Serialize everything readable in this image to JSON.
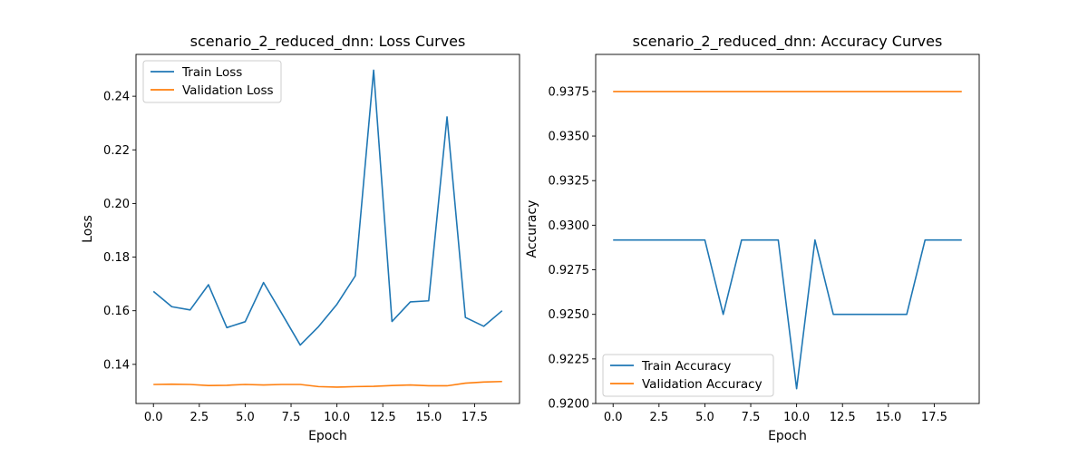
{
  "chart_data": [
    {
      "type": "line",
      "title": "scenario_2_reduced_dnn: Loss Curves",
      "xlabel": "Epoch",
      "ylabel": "Loss",
      "x": [
        0,
        1,
        2,
        3,
        4,
        5,
        6,
        7,
        8,
        9,
        10,
        11,
        12,
        13,
        14,
        15,
        16,
        17,
        18,
        19
      ],
      "xlim": [
        -0.95,
        19.95
      ],
      "ylim": [
        0.1254,
        0.2556
      ],
      "xticks": [
        0.0,
        2.5,
        5.0,
        7.5,
        10.0,
        12.5,
        15.0,
        17.5
      ],
      "xtick_labels": [
        "0.0",
        "2.5",
        "5.0",
        "7.5",
        "10.0",
        "12.5",
        "15.0",
        "17.5"
      ],
      "yticks": [
        0.14,
        0.16,
        0.18,
        0.2,
        0.22,
        0.24
      ],
      "ytick_labels": [
        "0.14",
        "0.16",
        "0.18",
        "0.20",
        "0.22",
        "0.24"
      ],
      "legend_position": "upper-left",
      "series": [
        {
          "name": "Train Loss",
          "color": "#1f77b4",
          "values": [
            0.1672,
            0.1615,
            0.1603,
            0.1697,
            0.1537,
            0.1559,
            0.1705,
            0.1589,
            0.1472,
            0.1541,
            0.1624,
            0.173,
            0.2497,
            0.156,
            0.1633,
            0.1637,
            0.2323,
            0.1575,
            0.1542,
            0.16
          ]
        },
        {
          "name": "Validation Loss",
          "color": "#ff7f0e",
          "values": [
            0.1325,
            0.1326,
            0.1325,
            0.1321,
            0.1322,
            0.1325,
            0.1323,
            0.1325,
            0.1325,
            0.1317,
            0.1315,
            0.1317,
            0.1318,
            0.1321,
            0.1323,
            0.132,
            0.132,
            0.133,
            0.1334,
            0.1336
          ]
        }
      ]
    },
    {
      "type": "line",
      "title": "scenario_2_reduced_dnn: Accuracy Curves",
      "xlabel": "Epoch",
      "ylabel": "Accuracy",
      "x": [
        0,
        1,
        2,
        3,
        4,
        5,
        6,
        7,
        8,
        9,
        10,
        11,
        12,
        13,
        14,
        15,
        16,
        17,
        18,
        19
      ],
      "xlim": [
        -0.95,
        19.95
      ],
      "ylim": [
        0.92,
        0.93958
      ],
      "xticks": [
        0.0,
        2.5,
        5.0,
        7.5,
        10.0,
        12.5,
        15.0,
        17.5
      ],
      "xtick_labels": [
        "0.0",
        "2.5",
        "5.0",
        "7.5",
        "10.0",
        "12.5",
        "15.0",
        "17.5"
      ],
      "yticks": [
        0.92,
        0.9225,
        0.925,
        0.9275,
        0.93,
        0.9325,
        0.935,
        0.9375
      ],
      "ytick_labels": [
        "0.9200",
        "0.9225",
        "0.9250",
        "0.9275",
        "0.9300",
        "0.9325",
        "0.9350",
        "0.9375"
      ],
      "legend_position": "lower-left",
      "series": [
        {
          "name": "Train Accuracy",
          "color": "#1f77b4",
          "values": [
            0.92917,
            0.92917,
            0.92917,
            0.92917,
            0.92917,
            0.92917,
            0.925,
            0.92917,
            0.92917,
            0.92917,
            0.92083,
            0.92917,
            0.925,
            0.925,
            0.925,
            0.925,
            0.925,
            0.92917,
            0.92917,
            0.92917
          ]
        },
        {
          "name": "Validation Accuracy",
          "color": "#ff7f0e",
          "values": [
            0.9375,
            0.9375,
            0.9375,
            0.9375,
            0.9375,
            0.9375,
            0.9375,
            0.9375,
            0.9375,
            0.9375,
            0.9375,
            0.9375,
            0.9375,
            0.9375,
            0.9375,
            0.9375,
            0.9375,
            0.9375,
            0.9375,
            0.9375
          ]
        }
      ]
    }
  ]
}
